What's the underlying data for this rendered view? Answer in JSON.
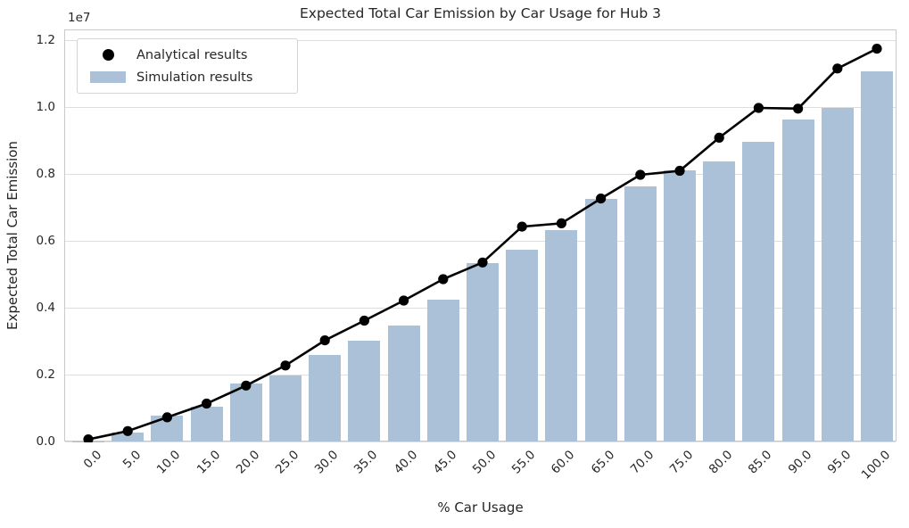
{
  "figure": {
    "title": "Expected Total Car Emission by Car Usage for Hub 3",
    "xlabel": "% Car Usage",
    "ylabel": "Expected Total Car Emission",
    "y_offset_label": "1e7"
  },
  "legend": {
    "items": [
      {
        "label": "Analytical results",
        "marker": "circle-marker",
        "color": "#000000"
      },
      {
        "label": "Simulation results",
        "marker": "bar-swatch",
        "color": "#aac1d7"
      }
    ],
    "position": "upper-left"
  },
  "colors": {
    "bar_fill": "#aac1d7",
    "line": "#000000",
    "text": "#262626",
    "gridline": "#dedede",
    "spine": "#c9c9c9",
    "background": "#ffffff"
  },
  "chart_data": {
    "type": "bar",
    "title": "Expected Total Car Emission by Car Usage for Hub 3",
    "xlabel": "% Car Usage",
    "ylabel": "Expected Total Car Emission",
    "y_scale_offset": "1e7",
    "grid": "horizontal",
    "legend_position": "upper-left",
    "ylim": [
      0,
      12320000
    ],
    "ytick_values": [
      0,
      2000000,
      4000000,
      6000000,
      8000000,
      10000000,
      12000000
    ],
    "ytick_labels": [
      "0.0",
      "0.2",
      "0.4",
      "0.6",
      "0.8",
      "1.0",
      "1.2"
    ],
    "categories": [
      "0.0",
      "5.0",
      "10.0",
      "15.0",
      "20.0",
      "25.0",
      "30.0",
      "35.0",
      "40.0",
      "45.0",
      "50.0",
      "55.0",
      "60.0",
      "65.0",
      "70.0",
      "75.0",
      "80.0",
      "85.0",
      "90.0",
      "95.0",
      "100.0"
    ],
    "series": [
      {
        "name": "Analytical results",
        "type": "line",
        "marker": "circle",
        "color": "#000000",
        "values": [
          90000,
          340000,
          750000,
          1160000,
          1700000,
          2300000,
          3050000,
          3640000,
          4240000,
          4880000,
          5380000,
          6450000,
          6550000,
          7290000,
          8000000,
          8120000,
          9110000,
          10000000,
          9980000,
          11180000,
          11770000
        ]
      },
      {
        "name": "Simulation results",
        "type": "bar",
        "color": "#aac1d7",
        "values": [
          40000,
          300000,
          800000,
          1060000,
          1750000,
          2010000,
          2610000,
          3050000,
          3500000,
          4260000,
          5350000,
          5750000,
          6350000,
          7290000,
          7660000,
          8140000,
          8400000,
          9000000,
          9660000,
          10000000,
          11090000
        ]
      }
    ]
  }
}
